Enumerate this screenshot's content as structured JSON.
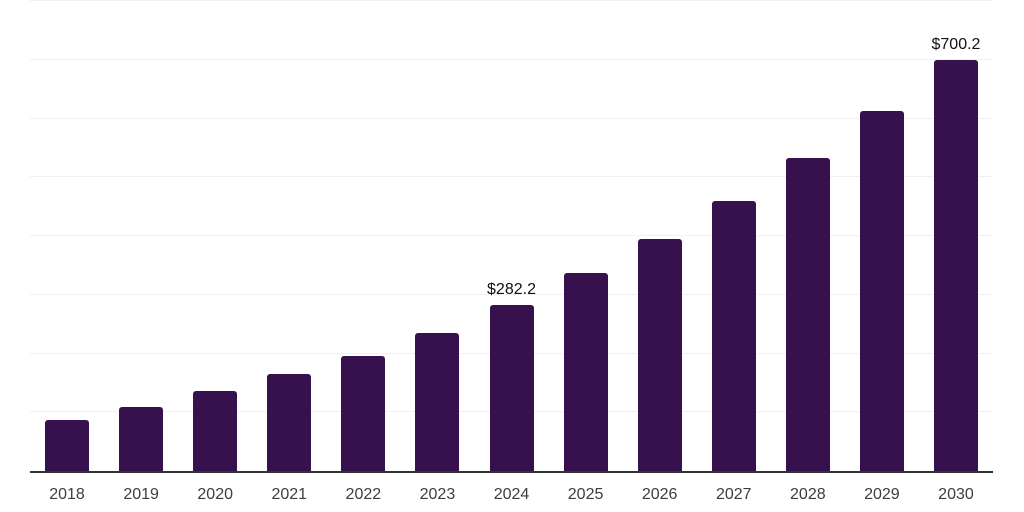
{
  "chart_data": {
    "type": "bar",
    "title": "",
    "categories": [
      "2018",
      "2019",
      "2020",
      "2021",
      "2022",
      "2023",
      "2024",
      "2025",
      "2026",
      "2027",
      "2028",
      "2029",
      "2030"
    ],
    "values": [
      86.7,
      108.3,
      136.5,
      165.4,
      196.0,
      235.1,
      282.2,
      337.1,
      395.4,
      459.4,
      533.2,
      613.6,
      700.2
    ],
    "data_labels": {
      "2024": "$282.2",
      "2030": "$700.2"
    },
    "xlabel": "",
    "ylabel": "",
    "ylim": [
      0,
      800
    ],
    "gridline_step": 100,
    "grid": true,
    "y_axis_labels_visible": false,
    "legend": false,
    "colors": {
      "bar": "#37114D",
      "gridline": "#f0f0f0",
      "axis_line": "#333333",
      "tick_text": "#3d3d3d",
      "data_label_text": "#111111",
      "background": "#ffffff"
    }
  }
}
